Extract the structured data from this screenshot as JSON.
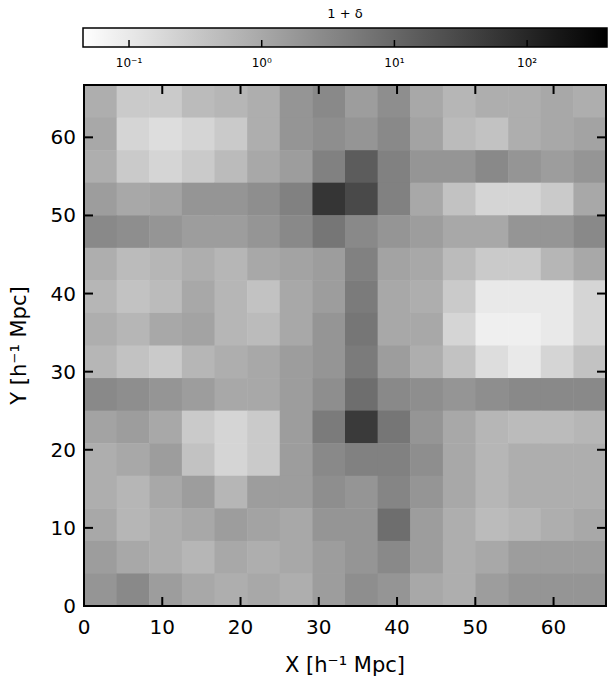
{
  "chart_data": {
    "type": "heatmap",
    "xlabel": "X [h⁻¹ Mpc]",
    "ylabel": "Y [h⁻¹ Mpc]",
    "xlim": [
      0,
      66.7
    ],
    "ylim": [
      0,
      66.7
    ],
    "xticks": [
      0,
      10,
      20,
      30,
      40,
      50,
      60
    ],
    "yticks": [
      0,
      10,
      20,
      30,
      40,
      50,
      60
    ],
    "cells": [
      [
        0.8,
        0.3,
        0.3,
        0.5,
        0.6,
        0.8,
        2,
        3,
        1.5,
        2.5,
        1,
        0.6,
        0.8,
        0.8,
        1,
        0.8
      ],
      [
        1,
        0.2,
        0.15,
        0.2,
        0.3,
        0.8,
        2,
        2.5,
        2,
        3,
        1.2,
        0.5,
        0.4,
        0.8,
        1,
        1.2
      ],
      [
        0.8,
        0.3,
        0.2,
        0.3,
        0.5,
        1,
        1.5,
        4,
        15,
        4,
        2,
        2,
        3,
        2,
        1.5,
        2
      ],
      [
        1.5,
        1,
        1.2,
        2,
        2,
        2.5,
        4,
        60,
        30,
        4,
        1,
        0.4,
        0.2,
        0.2,
        0.3,
        1
      ],
      [
        3,
        2.5,
        2,
        1.5,
        1.5,
        2,
        3,
        6,
        3,
        2,
        1.5,
        1,
        1,
        2,
        2,
        3
      ],
      [
        0.8,
        0.5,
        0.6,
        0.8,
        0.6,
        1,
        1.2,
        1.5,
        4,
        1.2,
        1,
        0.5,
        0.3,
        0.3,
        0.6,
        1
      ],
      [
        0.6,
        0.4,
        0.5,
        1,
        0.6,
        0.4,
        1,
        1.5,
        5,
        1,
        0.8,
        0.3,
        0.1,
        0.1,
        0.1,
        0.2
      ],
      [
        0.8,
        0.6,
        1,
        1.2,
        0.6,
        0.5,
        1,
        2,
        6,
        1,
        1,
        0.2,
        0.08,
        0.08,
        0.1,
        0.2
      ],
      [
        0.6,
        0.4,
        0.3,
        0.6,
        0.8,
        1,
        1.5,
        2,
        5,
        1.5,
        0.8,
        0.4,
        0.15,
        0.1,
        0.2,
        0.4
      ],
      [
        3,
        2.5,
        2,
        1.5,
        1,
        1,
        1.5,
        2.5,
        8,
        3,
        2.5,
        2,
        2.5,
        3,
        3,
        3
      ],
      [
        1.2,
        1.5,
        1,
        0.3,
        0.2,
        0.3,
        1.5,
        5,
        50,
        6,
        2,
        1,
        0.6,
        0.5,
        0.5,
        0.6
      ],
      [
        0.8,
        1,
        1.5,
        0.4,
        0.2,
        0.3,
        1.5,
        3,
        4,
        4,
        2.5,
        1,
        0.6,
        0.8,
        0.8,
        0.8
      ],
      [
        0.8,
        0.6,
        1,
        1.5,
        0.6,
        1.5,
        1.5,
        2.5,
        2,
        3.5,
        2,
        1,
        0.6,
        0.8,
        0.8,
        0.8
      ],
      [
        1,
        0.6,
        0.8,
        1,
        1.5,
        1.2,
        1,
        2,
        2,
        8,
        1.5,
        0.8,
        0.5,
        0.6,
        0.8,
        1
      ],
      [
        1.5,
        1,
        0.8,
        0.6,
        1,
        0.8,
        1,
        1.5,
        2,
        3,
        1.5,
        0.8,
        1,
        1.5,
        1.5,
        1.5
      ],
      [
        2,
        3,
        1.5,
        1,
        0.8,
        1,
        0.8,
        1.5,
        2.5,
        2,
        1,
        0.8,
        1.5,
        2,
        2,
        2
      ]
    ],
    "colorbar": {
      "label": "1 + δ",
      "range": [
        0.045,
        400
      ],
      "log": true,
      "ticks": [
        {
          "value": 0.1,
          "label": "10⁻¹"
        },
        {
          "value": 1,
          "label": "10⁰"
        },
        {
          "value": 10,
          "label": "10¹"
        },
        {
          "value": 100,
          "label": "10²"
        }
      ]
    }
  }
}
